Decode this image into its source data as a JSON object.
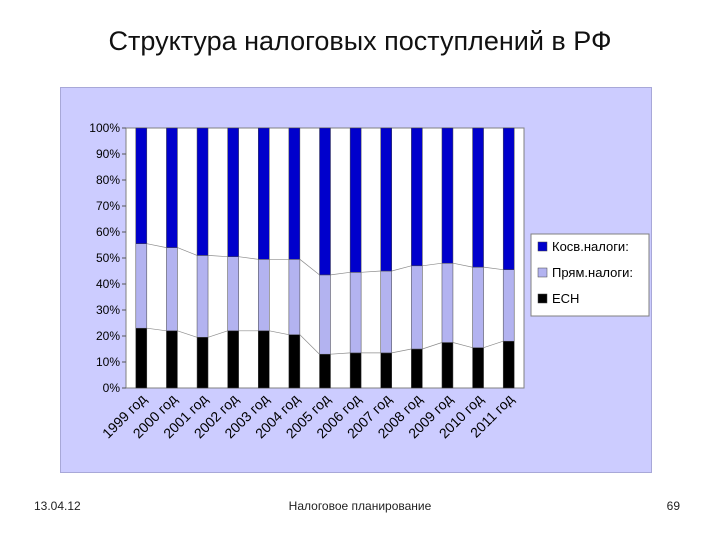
{
  "slide": {
    "title": "Структура налоговых поступлений в РФ",
    "footer_date": "13.04.12",
    "footer_center": "Налоговое планирование",
    "page_number": "69"
  },
  "colors": {
    "background": "#ccccff",
    "plot_background": "#ffffff",
    "series": [
      "#000000",
      "#b3b3f0",
      "#0000cc"
    ]
  },
  "chart_data": {
    "type": "bar",
    "stacked": "percent",
    "title": "",
    "xlabel": "",
    "ylabel": "",
    "ylim": [
      0,
      100
    ],
    "yticks": [
      "0%",
      "10%",
      "20%",
      "30%",
      "40%",
      "50%",
      "60%",
      "70%",
      "80%",
      "90%",
      "100%"
    ],
    "categories": [
      "1999 год",
      "2000 год",
      "2001 год",
      "2002 год",
      "2003 год",
      "2004 год",
      "2005 год",
      "2006 год",
      "2007 год",
      "2008 год",
      "2009 год",
      "2010 год",
      "2011 год"
    ],
    "series": [
      {
        "name": "ЕСН",
        "values": [
          23,
          22,
          19.5,
          22,
          22,
          20.5,
          13,
          13.5,
          13.5,
          15,
          17.5,
          15.5,
          18
        ]
      },
      {
        "name": "Прям.налоги:",
        "values": [
          32.5,
          32,
          31.5,
          28.5,
          27.5,
          29,
          30.5,
          31,
          31.5,
          32,
          30.5,
          31,
          27.5
        ]
      },
      {
        "name": "Косв.налоги:",
        "values": [
          44.5,
          46,
          49,
          49.5,
          50.5,
          50.5,
          56.5,
          55.5,
          55,
          53,
          52,
          53.5,
          54.5
        ]
      }
    ],
    "legend_position": "right",
    "legend_order": [
      "Косв.налоги:",
      "Прям.налоги:",
      "ЕСН"
    ],
    "series_lines": true,
    "grid": false
  }
}
